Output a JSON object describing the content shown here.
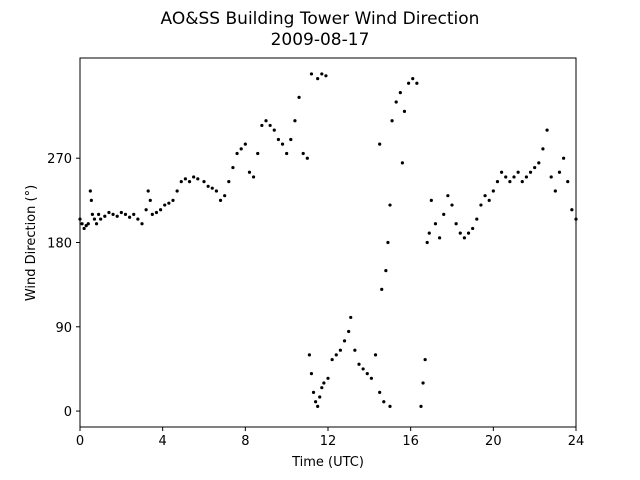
{
  "chart_data": {
    "type": "scatter",
    "title": "AO&SS Building Tower Wind Direction",
    "subtitle": "2009-08-17",
    "x_label": "Time (UTC)",
    "y_label": "Wind Direction (°)",
    "color": "#000000",
    "grid": false,
    "xlim": [
      0,
      24
    ],
    "ylim": [
      -17,
      377
    ],
    "xticks": [
      0,
      4,
      8,
      12,
      16,
      20,
      24
    ],
    "yticks": [
      0,
      90,
      180,
      270
    ],
    "x": [
      0.0,
      0.1,
      0.2,
      0.3,
      0.4,
      0.5,
      0.55,
      0.6,
      0.7,
      0.8,
      0.9,
      1.0,
      1.2,
      1.4,
      1.6,
      1.8,
      2.0,
      2.2,
      2.4,
      2.6,
      2.8,
      3.0,
      3.2,
      3.3,
      3.4,
      3.5,
      3.7,
      3.9,
      4.1,
      4.3,
      4.5,
      4.7,
      4.9,
      5.1,
      5.3,
      5.5,
      5.7,
      6.0,
      6.2,
      6.4,
      6.6,
      6.8,
      7.0,
      7.2,
      7.4,
      7.6,
      7.8,
      8.0,
      8.2,
      8.4,
      8.6,
      8.8,
      9.0,
      9.2,
      9.4,
      9.6,
      9.8,
      10.0,
      10.2,
      10.4,
      10.6,
      10.8,
      11.0,
      11.1,
      11.2,
      11.3,
      11.4,
      11.5,
      11.6,
      11.7,
      11.8,
      12.0,
      12.2,
      12.4,
      12.6,
      12.8,
      13.0,
      13.1,
      13.3,
      13.5,
      13.7,
      13.9,
      14.1,
      14.3,
      14.5,
      14.7,
      15.0,
      11.2,
      11.5,
      11.7,
      11.9,
      14.6,
      14.8,
      14.9,
      15.0,
      15.1,
      15.3,
      15.5,
      15.7,
      15.9,
      16.1,
      16.3,
      15.6,
      14.5,
      16.5,
      16.6,
      16.7,
      16.8,
      16.9,
      17.0,
      17.2,
      17.4,
      17.6,
      17.8,
      18.0,
      18.2,
      18.4,
      18.6,
      18.8,
      19.0,
      19.2,
      19.4,
      19.6,
      19.8,
      20.0,
      20.2,
      20.4,
      20.6,
      20.8,
      21.0,
      21.2,
      21.4,
      21.6,
      21.8,
      22.0,
      22.2,
      22.4,
      22.6,
      22.8,
      23.0,
      23.2,
      23.4,
      23.6,
      23.8,
      24.0
    ],
    "y": [
      205,
      200,
      195,
      198,
      200,
      235,
      225,
      210,
      205,
      200,
      210,
      205,
      208,
      212,
      210,
      208,
      212,
      210,
      207,
      210,
      205,
      200,
      215,
      235,
      225,
      210,
      212,
      215,
      220,
      222,
      225,
      235,
      245,
      248,
      245,
      250,
      248,
      245,
      240,
      238,
      235,
      225,
      230,
      245,
      260,
      275,
      280,
      285,
      255,
      250,
      275,
      305,
      310,
      305,
      300,
      290,
      285,
      275,
      290,
      310,
      335,
      275,
      270,
      60,
      40,
      20,
      10,
      5,
      15,
      25,
      30,
      35,
      55,
      60,
      65,
      75,
      85,
      100,
      65,
      50,
      45,
      40,
      35,
      60,
      20,
      10,
      5,
      360,
      355,
      360,
      358,
      130,
      150,
      180,
      220,
      310,
      330,
      340,
      320,
      350,
      355,
      350,
      265,
      285,
      5,
      30,
      55,
      180,
      190,
      225,
      200,
      185,
      210,
      230,
      220,
      200,
      190,
      185,
      190,
      195,
      205,
      220,
      230,
      225,
      235,
      245,
      255,
      250,
      245,
      250,
      255,
      245,
      250,
      255,
      260,
      265,
      280,
      300,
      250,
      235,
      255,
      270,
      245,
      215,
      205
    ]
  }
}
